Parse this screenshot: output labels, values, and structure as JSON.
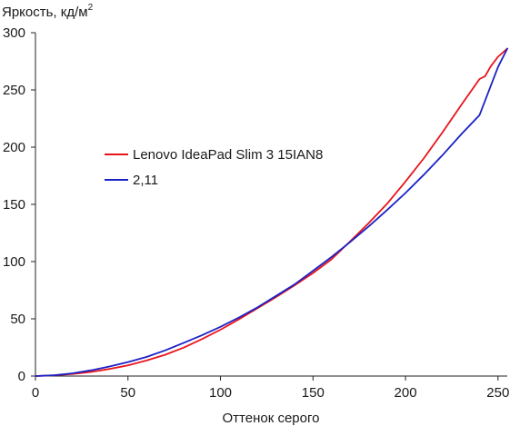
{
  "chart_data": {
    "type": "line",
    "ylabel_text": "Яркость, кд/м",
    "ylabel_sup": "2",
    "xlabel": "Оттенок серого",
    "xlim": [
      0,
      255
    ],
    "ylim": [
      0,
      300
    ],
    "xticks": [
      0,
      50,
      100,
      150,
      200,
      250
    ],
    "yticks": [
      0,
      50,
      100,
      150,
      200,
      250,
      300
    ],
    "grid": false,
    "legend_position": "center-left",
    "series": [
      {
        "name": "Lenovo IdeaPad Slim 3 15IAN8",
        "color": "#e8141c",
        "x": [
          0,
          10,
          20,
          30,
          40,
          50,
          60,
          70,
          80,
          90,
          100,
          110,
          120,
          130,
          140,
          150,
          160,
          170,
          180,
          190,
          200,
          210,
          220,
          230,
          235,
          240,
          243,
          246,
          250,
          255
        ],
        "y": [
          0,
          0.6,
          1.8,
          3.6,
          6.2,
          9.4,
          13.6,
          18.6,
          24.8,
          32.3,
          40.5,
          49.6,
          59.2,
          69.0,
          79.2,
          90.0,
          102.0,
          117.5,
          133.5,
          150.5,
          170.0,
          190.5,
          213.0,
          236.5,
          248.0,
          259.5,
          262.0,
          270.5,
          279.0,
          286.0
        ]
      },
      {
        "name": "2,11",
        "color": "#1a22c6",
        "x": [
          0,
          10,
          20,
          30,
          40,
          50,
          60,
          70,
          80,
          90,
          100,
          110,
          120,
          130,
          140,
          150,
          160,
          170,
          180,
          190,
          200,
          210,
          220,
          230,
          240,
          250,
          255
        ],
        "y": [
          0,
          0.6,
          2.4,
          5.0,
          8.3,
          12.2,
          16.7,
          22.4,
          28.9,
          35.6,
          43.0,
          51.1,
          60.0,
          70.0,
          80.0,
          92.0,
          104.0,
          117.0,
          130.6,
          145.0,
          160.0,
          176.0,
          193.0,
          211.0,
          228.0,
          270.0,
          286.0
        ]
      }
    ]
  }
}
